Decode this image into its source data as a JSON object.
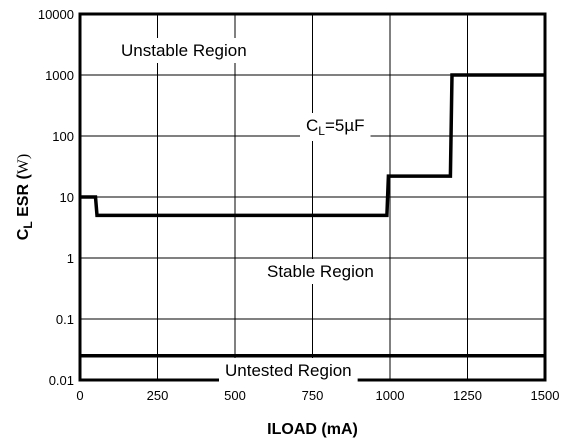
{
  "chart_data": {
    "type": "line",
    "xlabel": "ILOAD (mA)",
    "ylabel_parts": {
      "main": "C",
      "sub": "L",
      "rest": " ESR (",
      "unit": "W",
      "close": ")"
    },
    "xlim": [
      0,
      1500
    ],
    "ylim": [
      0.01,
      10000
    ],
    "yscale": "log",
    "grid": true,
    "x_ticks": [
      "0",
      "250",
      "500",
      "750",
      "1000",
      "1250",
      "1500"
    ],
    "x_tick_values": [
      0,
      250,
      500,
      750,
      1000,
      1250,
      1500
    ],
    "y_ticks": [
      "0.01",
      "0.1",
      "1",
      "10",
      "100",
      "1000",
      "10000"
    ],
    "y_tick_values": [
      0.01,
      0.1,
      1,
      10,
      100,
      1000,
      10000
    ],
    "series": [
      {
        "x": [
          0,
          50,
          55,
          990,
          995,
          1195,
          1200,
          1500
        ],
        "y": [
          10,
          10,
          5,
          5,
          22,
          22,
          1000,
          1000
        ]
      }
    ],
    "lower_boundary": {
      "y": 0.025
    },
    "annotations": {
      "unstable": "Unstable Region",
      "stable": "Stable Region",
      "untested": "Untested Region",
      "capacitance": {
        "main": "C",
        "sub": "L",
        "rest": "=5µF"
      }
    }
  }
}
